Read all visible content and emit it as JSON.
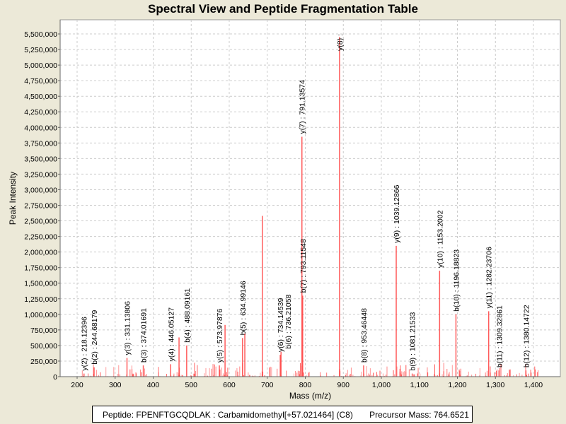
{
  "chart_data": {
    "type": "bar",
    "title": "Spectral View and Peptide Fragmentation Table",
    "xlabel": "Mass (m/z)",
    "ylabel": "Peak Intensity",
    "xlim": [
      155,
      1470
    ],
    "ylim": [
      0,
      5727000
    ],
    "xticks": [
      200,
      300,
      400,
      500,
      600,
      700,
      800,
      900,
      1000,
      1100,
      1200,
      1300,
      1400
    ],
    "xtick_labels": [
      "200",
      "300",
      "400",
      "500",
      "600",
      "700",
      "800",
      "900",
      "1,000",
      "1,100",
      "1,200",
      "1,300",
      "1,400"
    ],
    "yticks": [
      0,
      250000,
      500000,
      750000,
      1000000,
      1250000,
      1500000,
      1750000,
      2000000,
      2250000,
      2500000,
      2750000,
      3000000,
      3250000,
      3500000,
      3750000,
      4000000,
      4250000,
      4500000,
      4750000,
      5000000,
      5250000,
      5500000
    ],
    "ytick_labels": [
      "0",
      "250,000",
      "500,000",
      "750,000",
      "1,000,000",
      "1,250,000",
      "1,500,000",
      "1,750,000",
      "2,000,000",
      "2,250,000",
      "2,500,000",
      "2,750,000",
      "3,000,000",
      "3,250,000",
      "3,500,000",
      "3,750,000",
      "4,000,000",
      "4,250,000",
      "4,500,000",
      "4,750,000",
      "5,000,000",
      "5,250,000",
      "5,500,000"
    ],
    "grid": true,
    "series_color": "#ff3333",
    "peaks": [
      {
        "mz": 218.12,
        "intensity": 50000,
        "label": "y(2) : 218.12396"
      },
      {
        "mz": 244.68,
        "intensity": 150000,
        "label": "b(2) : 244.68179"
      },
      {
        "mz": 331.14,
        "intensity": 300000,
        "label": "y(3) : 331.13806"
      },
      {
        "mz": 374.02,
        "intensity": 180000,
        "label": "b(3) : 374.01691"
      },
      {
        "mz": 446.05,
        "intensity": 200000,
        "label": "y(4) : 446.05127"
      },
      {
        "mz": 468,
        "intensity": 630000,
        "label": ""
      },
      {
        "mz": 488.09,
        "intensity": 500000,
        "label": "b(4) : 488.09161"
      },
      {
        "mz": 573.98,
        "intensity": 180000,
        "label": "y(5) : 573.97876"
      },
      {
        "mz": 589,
        "intensity": 830000,
        "label": ""
      },
      {
        "mz": 634.99,
        "intensity": 620000,
        "label": "b(5) : 634.99146"
      },
      {
        "mz": 641,
        "intensity": 690000,
        "label": ""
      },
      {
        "mz": 687,
        "intensity": 2580000,
        "label": ""
      },
      {
        "mz": 734.15,
        "intensity": 350000,
        "label": "y(6) : 734.14539"
      },
      {
        "mz": 736.21,
        "intensity": 400000,
        "label": "b(6) : 736.21058"
      },
      {
        "mz": 791.14,
        "intensity": 3850000,
        "label": "y(7) : 791.13574"
      },
      {
        "mz": 793.12,
        "intensity": 1300000,
        "label": "b(7) : 793.11548"
      },
      {
        "mz": 890,
        "intensity": 5450000,
        "label": "y(8) :"
      },
      {
        "mz": 953.46,
        "intensity": 180000,
        "label": "b(8) : 953.46448"
      },
      {
        "mz": 1039.13,
        "intensity": 2100000,
        "label": "y(9) : 1039.12866"
      },
      {
        "mz": 1081.22,
        "intensity": 50000,
        "label": "b(9) : 1081.21533"
      },
      {
        "mz": 1153.2,
        "intensity": 1700000,
        "label": "y(10) : 1153.2002"
      },
      {
        "mz": 1196.19,
        "intensity": 1000000,
        "label": "b(10) : 1196.18823"
      },
      {
        "mz": 1282.24,
        "intensity": 1050000,
        "label": "y(11) : 1282.23706"
      },
      {
        "mz": 1309.33,
        "intensity": 100000,
        "label": "b(11) : 1309.32861"
      },
      {
        "mz": 1380.15,
        "intensity": 100000,
        "label": "b(12) : 1380.14722"
      }
    ]
  },
  "legend": {
    "peptide": "Peptide: FPENFTGCQDLAK : Carbamidomethyl[+57.021464] (C8)",
    "precursor": "Precursor Mass: 764.6521"
  }
}
